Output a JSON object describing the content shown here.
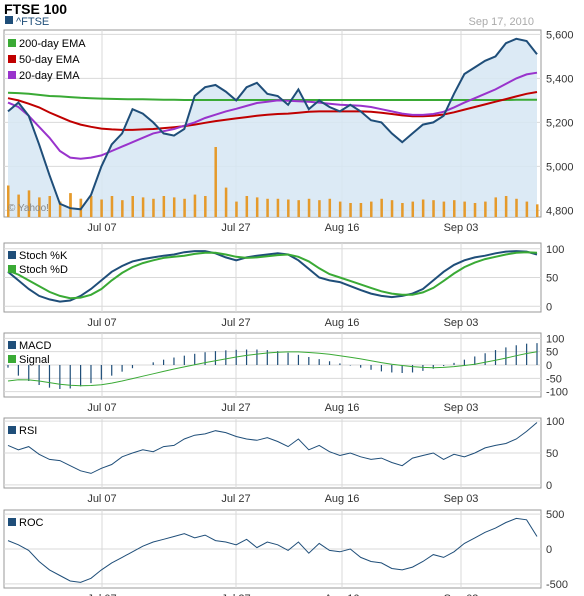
{
  "header": {
    "title": "FTSE 100",
    "ticker": "^FTSE",
    "date": "Sep 17, 2010"
  },
  "colors": {
    "price_line": "#1f4e79",
    "price_fill": "#d6e6f3",
    "ema200": "#3aaa35",
    "ema50": "#c00000",
    "ema20": "#9933cc",
    "volume": "#e59a2b",
    "macd_bar": "#1f4e79",
    "signal": "#3aaa35",
    "grid": "#d9d9d9"
  },
  "x_ticks": [
    "Jul 07",
    "Jul 27",
    "Aug 16",
    "Sep 03"
  ],
  "watermark": "© Yahoo!",
  "chart_data": [
    {
      "type": "line",
      "name": "price",
      "legend": [
        "^FTSE",
        "200-day EMA",
        "50-day EMA",
        "20-day EMA"
      ],
      "y_ticks": [
        "5,600",
        "5,400",
        "5,200",
        "5,000",
        "4,800"
      ],
      "y_tick_values": [
        5600,
        5400,
        5200,
        5000,
        4800
      ],
      "ylim": [
        4770,
        5620
      ],
      "grid": true,
      "series": [
        {
          "name": "^FTSE",
          "values": [
            5250,
            5290,
            5230,
            5100,
            4960,
            4830,
            4810,
            4805,
            4870,
            5000,
            5100,
            5150,
            5260,
            5240,
            5200,
            5150,
            5140,
            5170,
            5320,
            5360,
            5370,
            5340,
            5300,
            5360,
            5380,
            5330,
            5320,
            5280,
            5350,
            5260,
            5300,
            5270,
            5250,
            5280,
            5250,
            5210,
            5200,
            5150,
            5110,
            5150,
            5190,
            5200,
            5230,
            5330,
            5420,
            5450,
            5480,
            5500,
            5560,
            5580,
            5570,
            5510
          ]
        },
        {
          "name": "200-day EMA",
          "values": [
            5335,
            5333,
            5330,
            5325,
            5320,
            5318,
            5315,
            5312,
            5310,
            5308,
            5307,
            5306,
            5305,
            5305,
            5304,
            5303,
            5303,
            5302,
            5302,
            5302,
            5302,
            5302,
            5302,
            5302,
            5302,
            5302,
            5302,
            5302,
            5302,
            5302,
            5302,
            5302,
            5302,
            5302,
            5302,
            5302,
            5302,
            5302,
            5302,
            5302,
            5302,
            5302,
            5302,
            5302,
            5302,
            5302,
            5302,
            5302,
            5302,
            5303,
            5303,
            5303
          ]
        },
        {
          "name": "50-day EMA",
          "values": [
            5310,
            5300,
            5285,
            5268,
            5245,
            5225,
            5205,
            5190,
            5180,
            5172,
            5168,
            5166,
            5166,
            5168,
            5170,
            5174,
            5178,
            5183,
            5190,
            5198,
            5206,
            5212,
            5218,
            5224,
            5230,
            5235,
            5238,
            5240,
            5244,
            5248,
            5250,
            5250,
            5250,
            5250,
            5250,
            5248,
            5244,
            5238,
            5232,
            5228,
            5228,
            5230,
            5236,
            5246,
            5258,
            5270,
            5282,
            5294,
            5306,
            5318,
            5330,
            5338
          ]
        },
        {
          "name": "20-day EMA",
          "values": [
            5290,
            5270,
            5230,
            5180,
            5130,
            5070,
            5040,
            5035,
            5040,
            5050,
            5070,
            5090,
            5110,
            5130,
            5150,
            5160,
            5170,
            5185,
            5200,
            5220,
            5235,
            5250,
            5262,
            5275,
            5288,
            5294,
            5300,
            5298,
            5296,
            5294,
            5290,
            5285,
            5280,
            5278,
            5276,
            5270,
            5260,
            5250,
            5240,
            5234,
            5234,
            5238,
            5248,
            5268,
            5290,
            5310,
            5330,
            5350,
            5375,
            5400,
            5418,
            5426
          ]
        }
      ],
      "volume": [
        0.45,
        0.32,
        0.38,
        0.28,
        0.3,
        0.22,
        0.34,
        0.26,
        0.3,
        0.25,
        0.3,
        0.24,
        0.3,
        0.28,
        0.26,
        0.3,
        0.28,
        0.26,
        0.32,
        0.3,
        1.0,
        0.42,
        0.22,
        0.3,
        0.28,
        0.26,
        0.26,
        0.25,
        0.24,
        0.26,
        0.24,
        0.26,
        0.22,
        0.2,
        0.2,
        0.22,
        0.26,
        0.24,
        0.2,
        0.22,
        0.25,
        0.24,
        0.22,
        0.24,
        0.22,
        0.2,
        0.22,
        0.28,
        0.3,
        0.26,
        0.22,
        0.18
      ]
    },
    {
      "type": "line",
      "name": "stochastic",
      "legend": [
        "Stoch %K",
        "Stoch %D"
      ],
      "y_ticks": [
        "100",
        "50",
        "0"
      ],
      "y_tick_values": [
        100,
        50,
        0
      ],
      "ylim": [
        -10,
        110
      ],
      "series": [
        {
          "name": "Stoch %K",
          "values": [
            60,
            45,
            30,
            18,
            12,
            8,
            10,
            18,
            30,
            45,
            60,
            70,
            78,
            82,
            85,
            88,
            90,
            94,
            96,
            96,
            92,
            85,
            80,
            85,
            88,
            90,
            92,
            90,
            80,
            65,
            50,
            45,
            42,
            35,
            28,
            22,
            18,
            16,
            18,
            22,
            30,
            45,
            60,
            72,
            80,
            85,
            88,
            92,
            95,
            96,
            95,
            90
          ]
        },
        {
          "name": "Stoch %D",
          "values": [
            62,
            55,
            45,
            35,
            25,
            18,
            14,
            15,
            20,
            30,
            45,
            58,
            68,
            75,
            80,
            84,
            86,
            88,
            91,
            93,
            93,
            90,
            86,
            84,
            85,
            87,
            89,
            90,
            86,
            78,
            66,
            56,
            50,
            44,
            38,
            32,
            26,
            22,
            20,
            20,
            24,
            32,
            44,
            57,
            68,
            76,
            82,
            86,
            90,
            93,
            94,
            93
          ]
        }
      ]
    },
    {
      "type": "bar",
      "name": "macd",
      "legend": [
        "MACD",
        "Signal"
      ],
      "y_ticks": [
        "100",
        "50",
        "0",
        "-50",
        "-100"
      ],
      "y_tick_values": [
        100,
        50,
        0,
        -50,
        -100
      ],
      "ylim": [
        -120,
        120
      ],
      "series": [
        {
          "name": "MACD",
          "values": [
            -10,
            -40,
            -60,
            -75,
            -85,
            -90,
            -88,
            -80,
            -68,
            -55,
            -40,
            -25,
            -12,
            0,
            10,
            20,
            28,
            35,
            42,
            48,
            52,
            55,
            57,
            58,
            58,
            56,
            52,
            46,
            38,
            30,
            22,
            14,
            6,
            -2,
            -10,
            -18,
            -24,
            -28,
            -30,
            -28,
            -22,
            -14,
            -4,
            8,
            20,
            32,
            44,
            56,
            66,
            74,
            80,
            82
          ]
        },
        {
          "name": "Signal",
          "values": [
            -60,
            -55,
            -56,
            -60,
            -66,
            -72,
            -76,
            -78,
            -77,
            -74,
            -68,
            -60,
            -51,
            -42,
            -33,
            -24,
            -15,
            -7,
            1,
            9,
            16,
            23,
            30,
            36,
            41,
            45,
            48,
            49,
            49,
            47,
            44,
            40,
            35,
            29,
            23,
            16,
            9,
            3,
            -2,
            -6,
            -9,
            -10,
            -9,
            -6,
            -2,
            3,
            10,
            18,
            26,
            35,
            43,
            50
          ]
        }
      ]
    },
    {
      "type": "line",
      "name": "rsi",
      "legend": [
        "RSI"
      ],
      "y_ticks": [
        "100",
        "50",
        "0"
      ],
      "y_tick_values": [
        100,
        50,
        0
      ],
      "ylim": [
        -5,
        105
      ],
      "series": [
        {
          "name": "RSI",
          "values": [
            62,
            55,
            60,
            48,
            40,
            38,
            30,
            22,
            18,
            26,
            32,
            44,
            50,
            55,
            52,
            60,
            62,
            72,
            78,
            80,
            85,
            82,
            76,
            72,
            70,
            74,
            68,
            60,
            72,
            55,
            62,
            52,
            46,
            50,
            44,
            40,
            42,
            35,
            30,
            42,
            46,
            50,
            40,
            48,
            44,
            50,
            58,
            62,
            65,
            72,
            84,
            98
          ]
        }
      ]
    },
    {
      "type": "line",
      "name": "roc",
      "legend": [
        "ROC"
      ],
      "y_ticks": [
        "500",
        "0",
        "-500"
      ],
      "y_tick_values": [
        500,
        0,
        -500
      ],
      "ylim": [
        -560,
        560
      ],
      "series": [
        {
          "name": "ROC",
          "values": [
            120,
            60,
            -20,
            -180,
            -300,
            -380,
            -460,
            -480,
            -420,
            -300,
            -200,
            -120,
            -40,
            40,
            100,
            140,
            180,
            220,
            160,
            200,
            120,
            100,
            60,
            140,
            20,
            100,
            60,
            -20,
            100,
            -60,
            80,
            -20,
            -40,
            0,
            -120,
            -180,
            -200,
            -280,
            -300,
            -260,
            -180,
            -80,
            -120,
            -40,
            80,
            160,
            240,
            300,
            380,
            440,
            420,
            180
          ]
        }
      ]
    }
  ]
}
